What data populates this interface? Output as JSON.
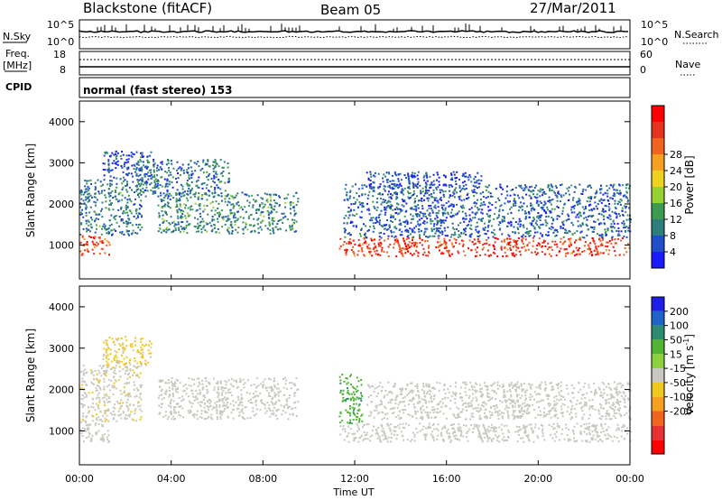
{
  "header": {
    "station": "Blackstone (fitACF)",
    "beam": "Beam 05",
    "date": "27/Mar/2011"
  },
  "top_panels": {
    "nsky_label": "N.Sky",
    "nsearch_label": "N.Search",
    "nsky_ticks": [
      "10^5",
      "10^0"
    ],
    "nsearch_ticks": [
      "10^5",
      "10^0"
    ],
    "freq_label": "Freq.",
    "freq_unit": "[MHz]",
    "freq_ticks": [
      "18",
      "8"
    ],
    "nave_label": "Nave",
    "nave_ticks": [
      "60",
      "0"
    ],
    "cpid_label": "CPID",
    "cpid_text": "normal (fast stereo) 153"
  },
  "colors": {
    "power_scale": [
      "#1a1aff",
      "#1e50c8",
      "#2d7d7d",
      "#3c9b50",
      "#96d232",
      "#f0d21e",
      "#f5a01e",
      "#f0641e",
      "#e6321e",
      "#ff0000"
    ],
    "velocity_scale": [
      "#1e1ee6",
      "#1e64c8",
      "#2d8c6e",
      "#50b432",
      "#8cd23c",
      "#c8c8c0",
      "#f0c81e",
      "#f5a01e",
      "#f0641e",
      "#e63232",
      "#ff0000"
    ],
    "ground_scatter": "#c8c8c0"
  },
  "chart_data": [
    {
      "type": "heatmap",
      "name": "power",
      "ylabel": "Slant Range [km]",
      "ylim": [
        180,
        4500
      ],
      "yticks": [
        "1000",
        "2000",
        "3000",
        "4000"
      ],
      "colorbar": {
        "label": "Power [dB]",
        "range": [
          0,
          32
        ],
        "ticks": [
          "4",
          "8",
          "12",
          "16",
          "20",
          "24",
          "28"
        ]
      },
      "echo_regions": [
        {
          "t0": 0.0,
          "t1": 1.3,
          "r0": 750,
          "r1": 1250,
          "level": 26
        },
        {
          "t0": 0.0,
          "t1": 2.7,
          "r0": 1250,
          "r1": 2600,
          "level": 8
        },
        {
          "t0": 1.0,
          "t1": 3.1,
          "r0": 2600,
          "r1": 3300,
          "level": 5
        },
        {
          "t0": 3.4,
          "t1": 9.5,
          "r0": 1300,
          "r1": 2300,
          "level": 9
        },
        {
          "t0": 2.5,
          "t1": 6.5,
          "r0": 2200,
          "r1": 3100,
          "level": 7
        },
        {
          "t0": 11.3,
          "t1": 24.0,
          "r0": 750,
          "r1": 1200,
          "level": 27
        },
        {
          "t0": 11.5,
          "t1": 24.0,
          "r0": 1200,
          "r1": 2500,
          "level": 6
        },
        {
          "t0": 12.5,
          "t1": 17.5,
          "r0": 2400,
          "r1": 2800,
          "level": 4
        }
      ]
    },
    {
      "type": "heatmap",
      "name": "velocity",
      "ylabel": "Slant Range [km]",
      "xlabel": "Time UT",
      "ylim": [
        180,
        4500
      ],
      "yticks": [
        "1000",
        "2000",
        "3000",
        "4000"
      ],
      "xlim": [
        0,
        24
      ],
      "xticks": [
        "00:00",
        "04:00",
        "08:00",
        "12:00",
        "16:00",
        "20:00",
        "00:00"
      ],
      "colorbar": {
        "label": "Velocity [m s",
        "label_sup": "-1",
        "label_end": "]",
        "range": [
          -250,
          250
        ],
        "ticks": [
          "200",
          "100",
          "50",
          "15",
          "-15",
          "-50",
          "-100",
          "-200"
        ]
      },
      "echo_regions": [
        {
          "t0": 0.0,
          "t1": 1.3,
          "r0": 750,
          "r1": 1250,
          "level": 0
        },
        {
          "t0": 0.0,
          "t1": 2.7,
          "r0": 1250,
          "r1": 2600,
          "level": -40
        },
        {
          "t0": 1.0,
          "t1": 3.1,
          "r0": 2600,
          "r1": 3300,
          "level": -60
        },
        {
          "t0": 3.4,
          "t1": 9.5,
          "r0": 1300,
          "r1": 2300,
          "level": -30
        },
        {
          "t0": 11.3,
          "t1": 12.3,
          "r0": 1200,
          "r1": 2400,
          "level": 40
        },
        {
          "t0": 11.3,
          "t1": 24.0,
          "r0": 750,
          "r1": 1200,
          "level": 0
        },
        {
          "t0": 12.5,
          "t1": 24.0,
          "r0": 1300,
          "r1": 2200,
          "level": -20
        }
      ]
    }
  ]
}
